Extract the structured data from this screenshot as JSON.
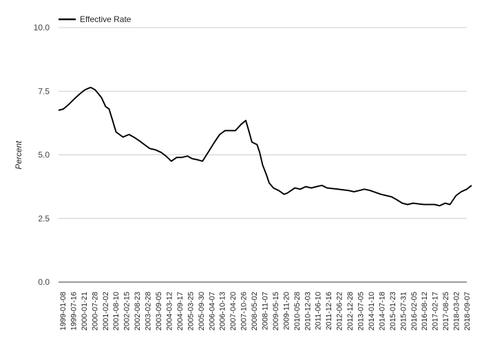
{
  "chart_data": {
    "type": "line",
    "title": "",
    "xlabel": "",
    "ylabel": "Percent",
    "ylim": [
      0,
      10
    ],
    "yticks": [
      "0.0",
      "2.5",
      "5.0",
      "7.5",
      "10.0"
    ],
    "grid": true,
    "legend_position": "top-left",
    "x_tick_labels": [
      "1999-01-08",
      "1999-07-16",
      "2000-01-21",
      "2000-07-28",
      "2001-02-02",
      "2001-08-10",
      "2002-02-15",
      "2002-08-23",
      "2003-02-28",
      "2003-09-05",
      "2004-03-12",
      "2004-09-17",
      "2005-03-25",
      "2005-09-30",
      "2006-04-07",
      "2006-10-13",
      "2007-04-20",
      "2007-10-26",
      "2008-05-02",
      "2008-11-07",
      "2009-05-15",
      "2009-11-20",
      "2010-05-28",
      "2010-12-03",
      "2011-06-10",
      "2011-12-16",
      "2012-06-22",
      "2012-12-28",
      "2013-07-05",
      "2014-01-10",
      "2014-07-18",
      "2015-01-23",
      "2015-07-31",
      "2016-02-05",
      "2016-08-12",
      "2017-02-17",
      "2017-08-25",
      "2018-03-02",
      "2018-09-07"
    ],
    "series": [
      {
        "name": "Effective Rate",
        "color": "#000000",
        "x": [
          "1999-01-08",
          "1999-04-01",
          "1999-07-16",
          "1999-10-15",
          "2000-01-21",
          "2000-04-15",
          "2000-06-01",
          "2000-07-28",
          "2000-10-15",
          "2001-02-02",
          "2001-04-15",
          "2001-06-15",
          "2001-08-10",
          "2001-10-15",
          "2001-12-15",
          "2002-02-15",
          "2002-06-01",
          "2002-08-23",
          "2002-12-01",
          "2003-02-28",
          "2003-06-01",
          "2003-09-05",
          "2003-12-15",
          "2004-03-12",
          "2004-06-15",
          "2004-09-17",
          "2004-12-15",
          "2005-03-25",
          "2005-06-15",
          "2005-09-30",
          "2005-12-15",
          "2006-04-07",
          "2006-07-15",
          "2006-10-13",
          "2007-01-15",
          "2007-04-20",
          "2007-07-15",
          "2007-10-26",
          "2008-01-15",
          "2008-03-01",
          "2008-05-02",
          "2008-08-01",
          "2008-09-15",
          "2008-11-07",
          "2009-01-15",
          "2009-03-01",
          "2009-05-15",
          "2009-08-15",
          "2009-11-20",
          "2010-01-15",
          "2010-05-28",
          "2010-09-01",
          "2010-12-03",
          "2011-03-15",
          "2011-06-10",
          "2011-09-15",
          "2011-12-16",
          "2012-06-22",
          "2012-12-28",
          "2013-04-01",
          "2013-07-05",
          "2013-10-01",
          "2014-01-10",
          "2014-07-18",
          "2015-01-23",
          "2015-04-15",
          "2015-07-31",
          "2015-11-01",
          "2016-02-05",
          "2016-08-12",
          "2017-02-17",
          "2017-05-15",
          "2017-08-25",
          "2017-11-15",
          "2018-03-02",
          "2018-06-01",
          "2018-09-07",
          "2018-12-01"
        ],
        "values": [
          6.75,
          6.8,
          7.0,
          7.2,
          7.4,
          7.55,
          7.6,
          7.65,
          7.55,
          7.25,
          6.9,
          6.8,
          6.4,
          5.9,
          5.8,
          5.7,
          5.8,
          5.7,
          5.55,
          5.4,
          5.25,
          5.2,
          5.1,
          4.95,
          4.75,
          4.9,
          4.9,
          4.95,
          4.85,
          4.8,
          4.75,
          5.15,
          5.5,
          5.8,
          5.95,
          5.95,
          5.95,
          6.2,
          6.35,
          6.0,
          5.5,
          5.4,
          5.1,
          4.6,
          4.2,
          3.9,
          3.7,
          3.6,
          3.45,
          3.5,
          3.7,
          3.65,
          3.75,
          3.7,
          3.75,
          3.8,
          3.7,
          3.65,
          3.6,
          3.55,
          3.6,
          3.65,
          3.6,
          3.45,
          3.35,
          3.25,
          3.1,
          3.05,
          3.1,
          3.05,
          3.05,
          3.0,
          3.1,
          3.05,
          3.4,
          3.55,
          3.65,
          3.8
        ]
      }
    ]
  }
}
